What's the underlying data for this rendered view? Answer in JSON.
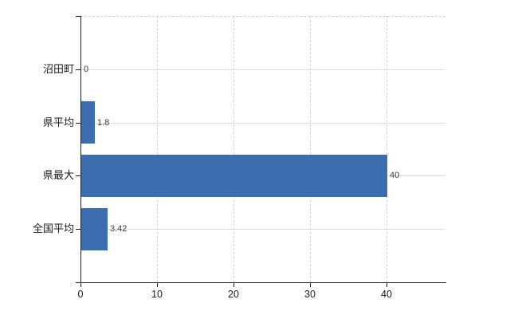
{
  "chart": {
    "background_color": "#ffffff",
    "bar_color": "#3c6db0",
    "axis_color": "#1a1a1a",
    "hgrid_color": "#d6ded6",
    "vgrid_color": "#ccd4cc",
    "top_border_color": "#c9cfc9"
  },
  "chart_data": {
    "type": "bar",
    "orientation": "horizontal",
    "title": "",
    "xlabel": "",
    "ylabel": "",
    "categories": [
      "沼田町",
      "県平均",
      "県最大",
      "全国平均"
    ],
    "values": [
      0,
      1.8,
      40,
      3.42
    ],
    "value_labels": [
      "0",
      "1.8",
      "40",
      "3.42"
    ],
    "x_ticks": [
      0,
      10,
      20,
      30,
      40
    ],
    "xlim": [
      0,
      47.7
    ],
    "grid": true,
    "legend": "none"
  }
}
